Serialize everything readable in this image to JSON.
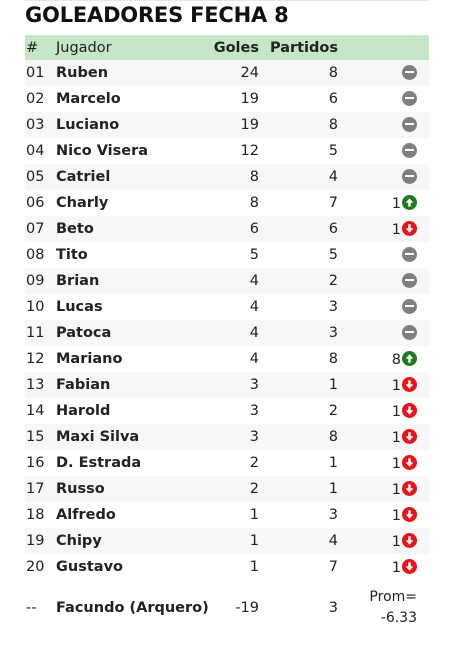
{
  "title": "GOLEADORES FECHA 8",
  "columns": {
    "num": "#",
    "player": "Jugador",
    "goals": "Goles",
    "matches": "Partidos"
  },
  "rows": [
    {
      "num": "01",
      "name": "Ruben",
      "goals": "24",
      "matches": "8",
      "trend_value": "",
      "trend": "neutral"
    },
    {
      "num": "02",
      "name": "Marcelo",
      "goals": "19",
      "matches": "6",
      "trend_value": "",
      "trend": "neutral"
    },
    {
      "num": "03",
      "name": "Luciano",
      "goals": "19",
      "matches": "8",
      "trend_value": "",
      "trend": "neutral"
    },
    {
      "num": "04",
      "name": "Nico Visera",
      "goals": "12",
      "matches": "5",
      "trend_value": "",
      "trend": "neutral"
    },
    {
      "num": "05",
      "name": "Catriel",
      "goals": "8",
      "matches": "4",
      "trend_value": "",
      "trend": "neutral"
    },
    {
      "num": "06",
      "name": "Charly",
      "goals": "8",
      "matches": "7",
      "trend_value": "1",
      "trend": "up"
    },
    {
      "num": "07",
      "name": "Beto",
      "goals": "6",
      "matches": "6",
      "trend_value": "1",
      "trend": "down"
    },
    {
      "num": "08",
      "name": "Tito",
      "goals": "5",
      "matches": "5",
      "trend_value": "",
      "trend": "neutral"
    },
    {
      "num": "09",
      "name": "Brian",
      "goals": "4",
      "matches": "2",
      "trend_value": "",
      "trend": "neutral"
    },
    {
      "num": "10",
      "name": "Lucas",
      "goals": "4",
      "matches": "3",
      "trend_value": "",
      "trend": "neutral"
    },
    {
      "num": "11",
      "name": "Patoca",
      "goals": "4",
      "matches": "3",
      "trend_value": "",
      "trend": "neutral"
    },
    {
      "num": "12",
      "name": "Mariano",
      "goals": "4",
      "matches": "8",
      "trend_value": "8",
      "trend": "up"
    },
    {
      "num": "13",
      "name": "Fabian",
      "goals": "3",
      "matches": "1",
      "trend_value": "1",
      "trend": "down"
    },
    {
      "num": "14",
      "name": "Harold",
      "goals": "3",
      "matches": "2",
      "trend_value": "1",
      "trend": "down"
    },
    {
      "num": "15",
      "name": "Maxi Silva",
      "goals": "3",
      "matches": "8",
      "trend_value": "1",
      "trend": "down"
    },
    {
      "num": "16",
      "name": "D. Estrada",
      "goals": "2",
      "matches": "1",
      "trend_value": "1",
      "trend": "down"
    },
    {
      "num": "17",
      "name": "Russo",
      "goals": "2",
      "matches": "1",
      "trend_value": "1",
      "trend": "down"
    },
    {
      "num": "18",
      "name": "Alfredo",
      "goals": "1",
      "matches": "3",
      "trend_value": "1",
      "trend": "down"
    },
    {
      "num": "19",
      "name": "Chipy",
      "goals": "1",
      "matches": "4",
      "trend_value": "1",
      "trend": "down"
    },
    {
      "num": "20",
      "name": "Gustavo",
      "goals": "1",
      "matches": "7",
      "trend_value": "1",
      "trend": "down"
    }
  ],
  "goalkeeper": {
    "num": "--",
    "name": "Facundo (Arquero)",
    "goals": "-19",
    "matches": "3",
    "avg_label": "Prom=",
    "avg_value": "-6.33"
  },
  "colors": {
    "header_bg": "#c5e6c8",
    "neutral": "#7f7f7f",
    "up": "#1f7a1f",
    "down": "#e8141a"
  },
  "icons": {
    "neutral": "minus-circle-icon",
    "up": "arrow-up-circle-icon",
    "down": "arrow-down-circle-icon"
  }
}
